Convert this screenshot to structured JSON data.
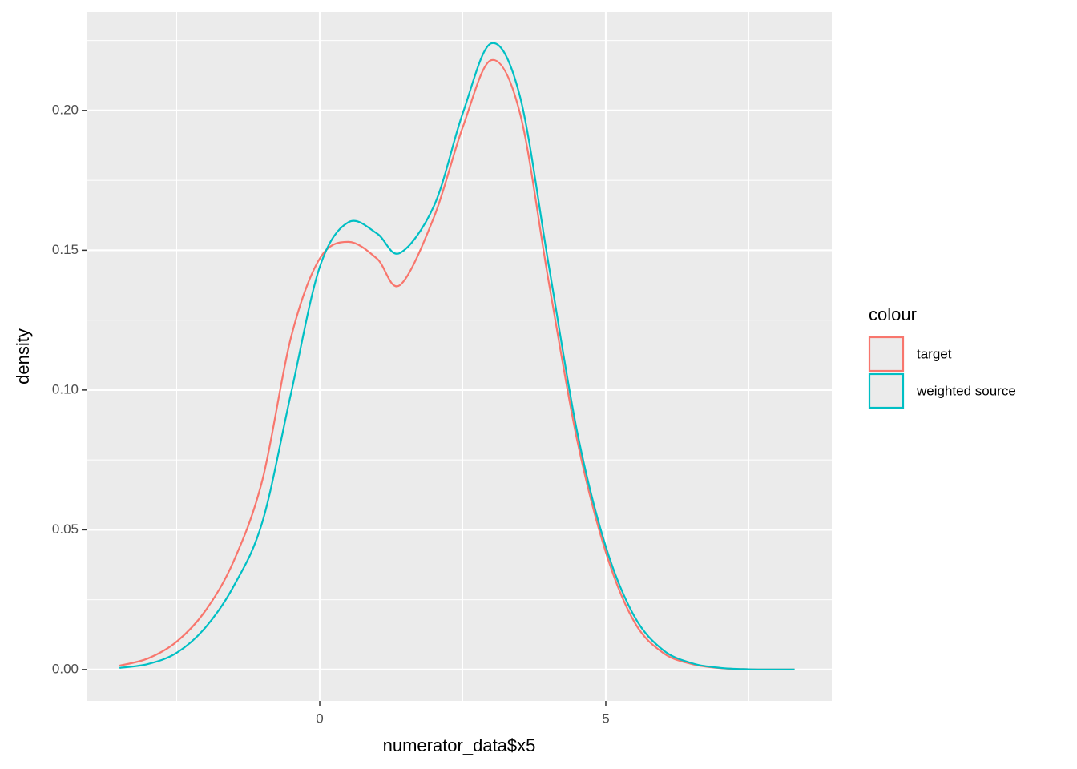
{
  "chart_data": {
    "type": "line",
    "x_label": "numerator_data$x5",
    "y_label": "density",
    "legend_title": "colour",
    "legend_position": "right",
    "grid": true,
    "x": [
      -3.5,
      -3,
      -2.5,
      -2,
      -1.5,
      -1,
      -0.5,
      0,
      0.5,
      1,
      1.4,
      2,
      2.5,
      3,
      3.5,
      4,
      4.5,
      5,
      5.5,
      6,
      6.5,
      7,
      7.5,
      8,
      8.3
    ],
    "series": [
      {
        "name": "target",
        "color": "#F8766D",
        "values": [
          0.0014,
          0.004,
          0.01,
          0.021,
          0.039,
          0.068,
          0.119,
          0.147,
          0.153,
          0.147,
          0.1375,
          0.162,
          0.194,
          0.218,
          0.199,
          0.139,
          0.082,
          0.042,
          0.017,
          0.006,
          0.002,
          0.0005,
          0.0001,
          0,
          0
        ]
      },
      {
        "name": "weighted source",
        "color": "#00BFC4",
        "values": [
          0.0006,
          0.002,
          0.006,
          0.015,
          0.03,
          0.053,
          0.099,
          0.144,
          0.16,
          0.156,
          0.149,
          0.166,
          0.199,
          0.224,
          0.205,
          0.145,
          0.085,
          0.044,
          0.019,
          0.007,
          0.0023,
          0.0006,
          0.0001,
          0,
          0
        ]
      }
    ],
    "xlim": [
      -4.076,
      8.95
    ],
    "ylim": [
      -0.0112,
      0.2352
    ],
    "xticks": [
      0,
      5
    ],
    "yticks": [
      {
        "value": 0,
        "label": "0.00"
      },
      {
        "value": 0.05,
        "label": "0.05"
      },
      {
        "value": 0.1,
        "label": "0.10"
      },
      {
        "value": 0.15,
        "label": "0.15"
      },
      {
        "value": 0.2,
        "label": "0.20"
      }
    ]
  }
}
